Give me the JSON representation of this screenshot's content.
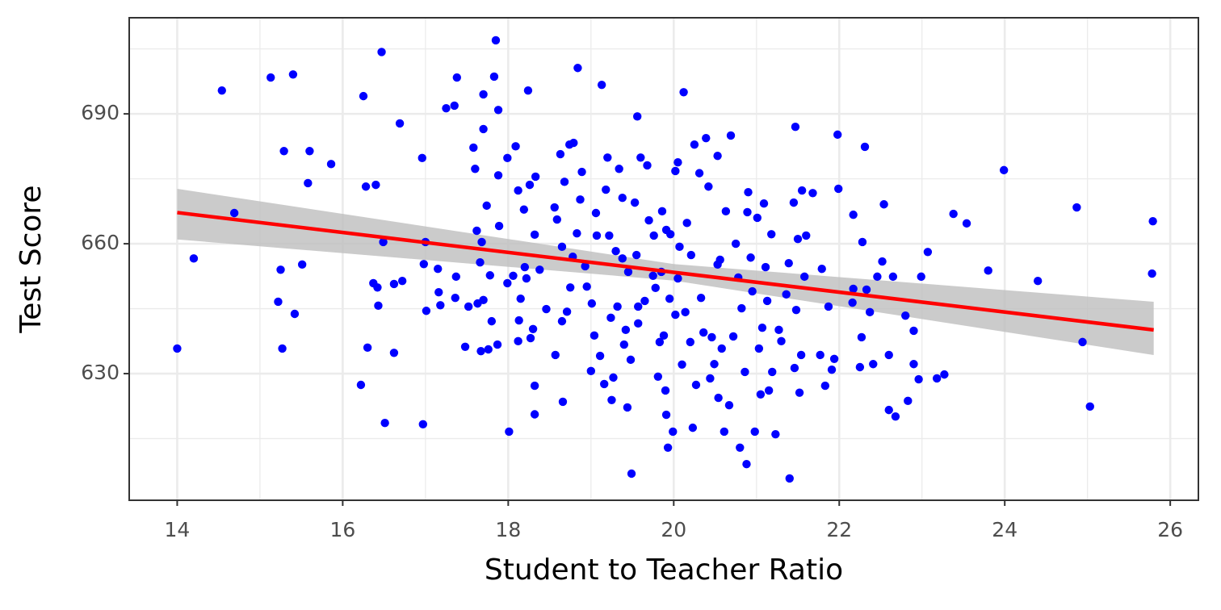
{
  "chart_data": {
    "type": "scatter",
    "x_label": "Student to Teacher Ratio",
    "y_label": "Test Score",
    "xlim": [
      13.42,
      26.34
    ],
    "ylim": [
      600.75,
      712.2
    ],
    "xticks": [
      14,
      16,
      18,
      20,
      22,
      24,
      26
    ],
    "yticks": [
      630,
      660,
      690
    ],
    "minor_xticks": [
      15,
      17,
      19,
      21,
      23,
      25
    ],
    "minor_yticks": [
      615,
      645,
      675,
      705
    ],
    "grid": true,
    "color": "#0000ff",
    "x": [
      14.0,
      14.2,
      14.54,
      14.69,
      15.13,
      15.22,
      15.25,
      15.27,
      15.29,
      15.4,
      15.42,
      15.51,
      15.58,
      15.6,
      15.86,
      16.22,
      16.25,
      16.28,
      16.3,
      16.4,
      16.37,
      16.43,
      16.42,
      16.47,
      16.49,
      16.51,
      16.62,
      16.62,
      16.69,
      16.72,
      16.96,
      16.97,
      16.98,
      17.0,
      17.01,
      17.15,
      17.16,
      17.18,
      17.25,
      17.35,
      17.38,
      17.37,
      17.36,
      17.48,
      17.52,
      17.58,
      17.6,
      17.62,
      17.63,
      17.66,
      17.67,
      17.68,
      17.7,
      17.7,
      17.7,
      17.74,
      17.76,
      17.78,
      17.8,
      17.83,
      17.85,
      17.88,
      17.88,
      17.89,
      17.87,
      17.99,
      17.99,
      18.01,
      18.06,
      18.09,
      18.12,
      18.12,
      18.13,
      18.15,
      18.19,
      18.2,
      18.22,
      18.24,
      18.26,
      18.27,
      18.3,
      18.32,
      18.32,
      18.32,
      18.33,
      18.38,
      18.46,
      18.56,
      18.57,
      18.59,
      18.63,
      18.65,
      18.65,
      18.66,
      18.68,
      18.71,
      18.74,
      18.75,
      18.78,
      18.79,
      18.83,
      18.84,
      18.87,
      18.89,
      18.93,
      18.95,
      19.0,
      19.01,
      19.04,
      19.06,
      19.07,
      19.11,
      19.13,
      19.16,
      19.18,
      19.2,
      19.22,
      19.24,
      19.25,
      19.27,
      19.3,
      19.32,
      19.34,
      19.38,
      19.38,
      19.4,
      19.42,
      19.44,
      19.45,
      19.48,
      19.49,
      19.53,
      19.55,
      19.56,
      19.57,
      19.57,
      19.6,
      19.65,
      19.68,
      19.7,
      19.75,
      19.76,
      19.78,
      19.81,
      19.83,
      19.85,
      19.86,
      19.88,
      19.9,
      19.91,
      19.91,
      19.93,
      19.95,
      19.96,
      19.99,
      20.02,
      20.02,
      20.05,
      20.05,
      20.07,
      20.1,
      20.12,
      20.14,
      20.16,
      20.2,
      20.21,
      20.23,
      20.25,
      20.27,
      20.31,
      20.33,
      20.36,
      20.39,
      20.42,
      20.44,
      20.46,
      20.49,
      20.53,
      20.53,
      20.54,
      20.56,
      20.58,
      20.61,
      20.63,
      20.67,
      20.69,
      20.72,
      20.75,
      20.78,
      20.8,
      20.82,
      20.86,
      20.88,
      20.89,
      20.9,
      20.93,
      20.95,
      20.98,
      21.01,
      21.03,
      21.05,
      21.07,
      21.09,
      21.11,
      21.13,
      21.15,
      21.18,
      21.19,
      21.23,
      21.27,
      21.3,
      21.36,
      21.39,
      21.4,
      21.45,
      21.46,
      21.47,
      21.48,
      21.5,
      21.52,
      21.54,
      21.55,
      21.58,
      21.6,
      21.68,
      21.77,
      21.79,
      21.83,
      21.87,
      21.91,
      21.94,
      21.98,
      21.99,
      22.16,
      22.17,
      22.17,
      22.25,
      22.27,
      22.28,
      22.31,
      22.33,
      22.37,
      22.41,
      22.46,
      22.52,
      22.54,
      22.6,
      22.6,
      22.65,
      22.68,
      22.8,
      22.83,
      22.9,
      22.9,
      22.96,
      22.99,
      23.07,
      23.18,
      23.27,
      23.38,
      23.54,
      23.8,
      23.99,
      24.4,
      24.87,
      24.94,
      25.03,
      25.78,
      25.79
    ],
    "values": [
      635.8,
      656.6,
      695.4,
      667.1,
      698.4,
      646.6,
      654.0,
      635.8,
      681.4,
      699.1,
      643.8,
      655.2,
      674.0,
      681.4,
      678.4,
      627.4,
      694.1,
      673.2,
      636.0,
      673.6,
      650.9,
      645.7,
      649.9,
      704.3,
      660.4,
      618.6,
      634.8,
      650.7,
      687.8,
      651.4,
      679.8,
      618.3,
      655.3,
      660.4,
      644.5,
      654.2,
      648.8,
      645.8,
      691.3,
      691.9,
      698.4,
      652.4,
      647.5,
      636.2,
      645.5,
      682.2,
      677.3,
      663.0,
      646.2,
      655.7,
      635.2,
      660.4,
      694.5,
      686.5,
      647.0,
      668.8,
      635.6,
      652.7,
      642.1,
      698.6,
      707.0,
      690.9,
      675.8,
      664.1,
      636.7,
      679.8,
      650.9,
      616.6,
      652.6,
      682.5,
      672.3,
      637.5,
      642.3,
      647.3,
      667.9,
      654.6,
      652.0,
      695.4,
      673.6,
      638.2,
      640.3,
      662.1,
      627.2,
      620.6,
      675.5,
      654.0,
      644.9,
      668.4,
      634.3,
      665.6,
      680.7,
      659.3,
      642.1,
      623.5,
      674.3,
      644.3,
      682.9,
      649.9,
      657.0,
      683.3,
      662.4,
      700.6,
      670.2,
      676.6,
      654.8,
      650.1,
      630.6,
      646.2,
      638.8,
      667.1,
      661.9,
      634.1,
      696.7,
      627.6,
      672.5,
      679.9,
      661.9,
      642.9,
      623.9,
      629.1,
      658.3,
      645.5,
      677.3,
      670.6,
      656.6,
      636.7,
      640.1,
      622.2,
      653.5,
      633.2,
      606.9,
      669.5,
      657.4,
      689.4,
      641.6,
      645.5,
      679.9,
      646.8,
      678.1,
      665.4,
      652.6,
      661.9,
      649.8,
      629.3,
      637.3,
      653.5,
      667.5,
      638.8,
      626.1,
      620.5,
      663.2,
      612.9,
      647.3,
      662.2,
      616.6,
      676.8,
      643.6,
      678.8,
      652.0,
      659.3,
      632.1,
      695.0,
      644.2,
      664.8,
      637.3,
      657.4,
      617.5,
      682.9,
      627.4,
      676.3,
      647.5,
      639.5,
      684.4,
      673.2,
      628.9,
      638.4,
      632.2,
      680.3,
      655.2,
      624.4,
      656.3,
      635.8,
      616.6,
      667.5,
      622.7,
      685.0,
      638.6,
      660.0,
      652.2,
      612.9,
      645.1,
      630.4,
      609.1,
      667.3,
      671.9,
      656.8,
      649.0,
      616.6,
      666.0,
      635.8,
      625.2,
      640.6,
      669.3,
      654.6,
      646.8,
      626.1,
      662.2,
      630.4,
      616.0,
      640.1,
      637.5,
      648.3,
      655.5,
      605.8,
      669.5,
      631.3,
      687.0,
      644.7,
      661.1,
      625.6,
      634.3,
      672.3,
      652.4,
      661.9,
      671.7,
      634.3,
      654.2,
      627.2,
      645.5,
      630.9,
      633.4,
      685.2,
      672.7,
      646.4,
      666.7,
      649.6,
      631.5,
      638.4,
      660.4,
      682.4,
      649.4,
      644.2,
      632.2,
      652.4,
      655.9,
      669.1,
      621.6,
      634.3,
      652.4,
      620.1,
      643.4,
      623.7,
      639.9,
      632.2,
      628.7,
      652.4,
      658.1,
      628.9,
      629.8,
      666.9,
      664.7,
      653.8,
      677.0,
      651.4,
      668.4,
      637.3,
      622.4,
      653.1,
      665.2
    ],
    "fit": {
      "color": "#ff0000",
      "band_color": "#bebebe",
      "x": [
        14,
        20,
        25.8
      ],
      "values": [
        667.2,
        653.4,
        640.1
      ],
      "band_lower": [
        661.0,
        651.5,
        634.3
      ],
      "band_upper": [
        672.7,
        655.3,
        646.6
      ]
    }
  }
}
